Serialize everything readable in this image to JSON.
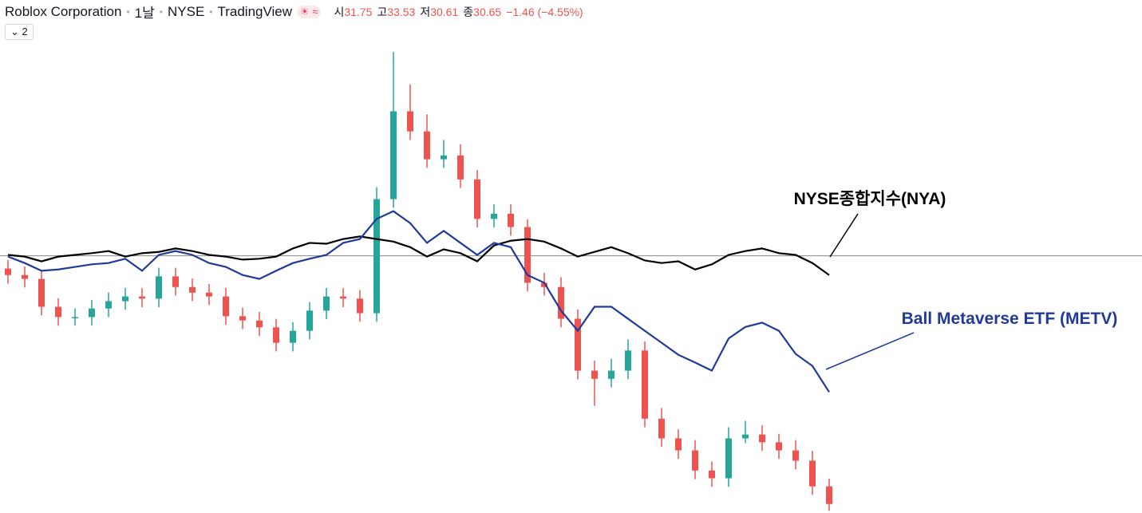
{
  "chart_data": {
    "type": "candlestick",
    "title": "Roblox Corporation",
    "interval": "1날",
    "exchange": "NYSE",
    "source": "TradingView",
    "ohlc": [
      {
        "label": "시",
        "value": 31.75
      },
      {
        "label": "고",
        "value": 33.53
      },
      {
        "label": "저",
        "value": 30.61
      },
      {
        "label": "종",
        "value": 30.65
      }
    ],
    "change": "−1.46 (−4.55%)",
    "indicator_count": 2,
    "ylim": [
      -60,
      55
    ],
    "up_color": "#26a69a",
    "down_color": "#ef5350",
    "categories": [
      null,
      null,
      null,
      null,
      null,
      null,
      null,
      null,
      null,
      null,
      null,
      null,
      null,
      null,
      null,
      null,
      null,
      null,
      null,
      null,
      null,
      null,
      null,
      null,
      null,
      null,
      null,
      null,
      null,
      null,
      null,
      null,
      null,
      null,
      null,
      null,
      null,
      null,
      null,
      null,
      null,
      null,
      null,
      null,
      null,
      null,
      null,
      null,
      null,
      null
    ],
    "candles": {
      "open": [
        -3.0,
        -4.5,
        -5.4,
        -11.9,
        -14.3,
        -14.3,
        -12.3,
        -10.6,
        -9.5,
        -10.0,
        -4.8,
        -7.3,
        -8.6,
        -9.5,
        -14.1,
        -15.1,
        -16.7,
        -20.3,
        -17.5,
        -12.8,
        -9.5,
        -10.0,
        -13.4,
        13.2,
        33.7,
        29.0,
        22.5,
        23.4,
        17.8,
        8.6,
        9.8,
        6.7,
        -6.3,
        -7.3,
        -14.7,
        -26.8,
        -28.7,
        -26.8,
        -22.1,
        -38.0,
        -42.6,
        -45.4,
        -50.1,
        -51.9,
        -42.6,
        -41.7,
        -43.5,
        -45.4,
        -47.8,
        -53.8
      ],
      "high": [
        -1.0,
        -2.5,
        -3.4,
        -9.9,
        -12.3,
        -10.3,
        -8.6,
        -7.5,
        -7.5,
        -2.8,
        -2.8,
        -5.3,
        -6.6,
        -7.5,
        -12.1,
        -13.1,
        -14.7,
        -15.5,
        -10.8,
        -7.5,
        -7.5,
        -8.0,
        16.0,
        47.5,
        40.0,
        33.0,
        27.0,
        26.0,
        20.0,
        12.0,
        12.0,
        8.5,
        -4.0,
        -5.0,
        -12.5,
        -24.5,
        -24.0,
        -19.5,
        -20.0,
        -35.5,
        -40.5,
        -43.0,
        -48.0,
        -40.0,
        -38.5,
        -39.5,
        -41.5,
        -43.0,
        -45.5,
        -52.0
      ],
      "low": [
        -6.5,
        -7.4,
        -13.9,
        -16.3,
        -16.3,
        -16.3,
        -14.3,
        -12.6,
        -12.0,
        -12.0,
        -9.3,
        -10.6,
        -11.5,
        -16.1,
        -17.1,
        -18.7,
        -22.3,
        -22.3,
        -19.5,
        -14.8,
        -12.0,
        -15.4,
        -15.4,
        11.2,
        27.0,
        20.5,
        20.5,
        15.8,
        6.6,
        6.6,
        4.7,
        -8.3,
        -9.3,
        -16.7,
        -28.8,
        -35.0,
        -30.7,
        -28.8,
        -40.0,
        -44.6,
        -47.4,
        -52.1,
        -53.9,
        -53.9,
        -43.7,
        -45.5,
        -47.4,
        -49.8,
        -55.8,
        -59.5
      ],
      "close": [
        -4.5,
        -5.4,
        -11.9,
        -14.3,
        -14.3,
        -12.3,
        -10.6,
        -9.5,
        -10.0,
        -4.8,
        -7.3,
        -8.6,
        -9.5,
        -14.1,
        -15.1,
        -16.7,
        -20.3,
        -17.5,
        -12.8,
        -9.5,
        -10.0,
        -13.4,
        13.2,
        33.7,
        29.0,
        22.5,
        23.4,
        17.8,
        8.6,
        9.8,
        6.7,
        -6.3,
        -7.3,
        -14.7,
        -26.8,
        -28.7,
        -26.8,
        -22.1,
        -38.0,
        -42.6,
        -45.4,
        -50.1,
        -51.9,
        -42.6,
        -41.7,
        -43.5,
        -45.4,
        -47.8,
        -53.8,
        -57.9
      ]
    },
    "series": [
      {
        "name": "NYSE종합지수(NYA)",
        "color": "#000000",
        "values": [
          0.2,
          -0.2,
          -1.3,
          -0.2,
          0.2,
          0.6,
          1.1,
          -0.2,
          0.6,
          0.9,
          1.7,
          1.1,
          0.2,
          -0.2,
          -0.9,
          -0.7,
          -0.2,
          1.7,
          3.0,
          2.8,
          3.9,
          4.5,
          3.9,
          3.3,
          2.0,
          -0.2,
          1.5,
          0.6,
          -1.3,
          2.4,
          3.5,
          3.9,
          3.3,
          1.7,
          -0.2,
          0.9,
          2.0,
          0.6,
          -1.1,
          -1.7,
          -1.3,
          -3.2,
          -2.0,
          0.2,
          1.1,
          1.7,
          0.6,
          0.2,
          -1.7,
          -4.5
        ]
      },
      {
        "name": "Ball Metaverse ETF (METV)",
        "color": "#1f3a9a",
        "values": [
          -0.2,
          -1.7,
          -3.5,
          -3.2,
          -2.6,
          -2.0,
          -1.7,
          -0.7,
          -3.5,
          0.2,
          1.1,
          0.2,
          -1.7,
          -2.6,
          -4.5,
          -5.4,
          -3.5,
          -1.7,
          -0.7,
          0.2,
          3.0,
          3.9,
          8.6,
          10.4,
          7.6,
          3.0,
          5.8,
          3.0,
          0.2,
          3.0,
          2.0,
          -4.5,
          -6.3,
          -12.8,
          -17.5,
          -11.9,
          -11.9,
          -14.7,
          -17.5,
          -20.3,
          -23.1,
          -24.9,
          -26.8,
          -19.3,
          -16.6,
          -15.6,
          -17.5,
          -22.9,
          -25.7,
          -31.8
        ]
      }
    ]
  }
}
